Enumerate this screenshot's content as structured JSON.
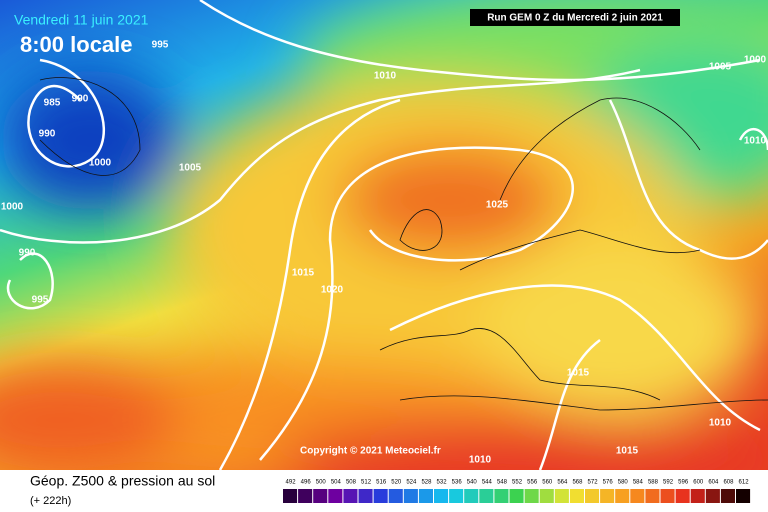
{
  "header": {
    "date": "Vendredi 11 juin 2021",
    "time": "8:00 locale",
    "run": "Run GEM 0 Z du Mercredi 2 juin 2021"
  },
  "map": {
    "copyright": "Copyright © 2021 Meteociel.fr",
    "isobar_labels": [
      995,
      985,
      990,
      990,
      1000,
      1005,
      1000,
      990,
      995,
      1010,
      1005,
      1000,
      1010,
      1025,
      1015,
      1020,
      1015,
      1010,
      1015,
      1010
    ]
  },
  "footer": {
    "title": "Géop. Z500 & pression au sol",
    "lead": "(+ 222h)"
  },
  "scale": {
    "levels": [
      492,
      496,
      500,
      504,
      508,
      512,
      516,
      520,
      524,
      528,
      532,
      536,
      540,
      544,
      548,
      552,
      556,
      560,
      564,
      568,
      572,
      576,
      580,
      584,
      588,
      592,
      596,
      600,
      604,
      608,
      612
    ]
  }
}
